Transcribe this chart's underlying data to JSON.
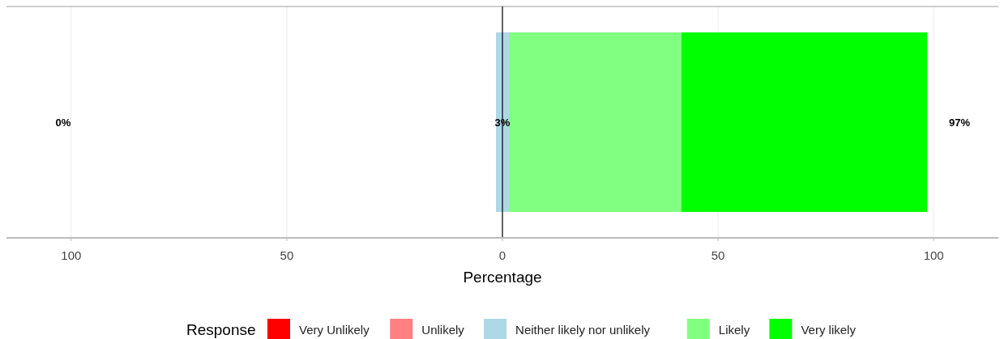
{
  "chart_data": {
    "type": "bar",
    "orientation": "horizontal",
    "categories": [
      null
    ],
    "xlabel": "Percentage",
    "legend_title": "Response",
    "legend": "bottom",
    "grid": "x",
    "tick_labels": "x",
    "xlim": [
      -115,
      115
    ],
    "xticks": [
      {
        "value": -100,
        "label": "100"
      },
      {
        "value": -50,
        "label": "50"
      },
      0,
      50,
      100
    ],
    "series": [
      {
        "name": "Very Unlikely",
        "color": "#ff0000",
        "values": [
          0
        ]
      },
      {
        "name": "Unlikely",
        "color": "#ff8080",
        "values": [
          0
        ]
      },
      {
        "name": "Neither likely nor unlikely",
        "color": "#add8e6",
        "values": [
          3
        ],
        "base": [
          -1.5
        ]
      },
      {
        "name": "Likely",
        "color": "#80ff80",
        "values": [
          40
        ],
        "base": [
          1.5
        ]
      },
      {
        "name": "Very likely",
        "color": "#00ff00",
        "values": [
          57
        ],
        "base": [
          41.5
        ]
      }
    ],
    "ref_lines": [
      {
        "axis": "x",
        "value": 0,
        "color": "#000000"
      }
    ],
    "annotations": [
      "0%",
      "3%",
      "97%"
    ]
  }
}
